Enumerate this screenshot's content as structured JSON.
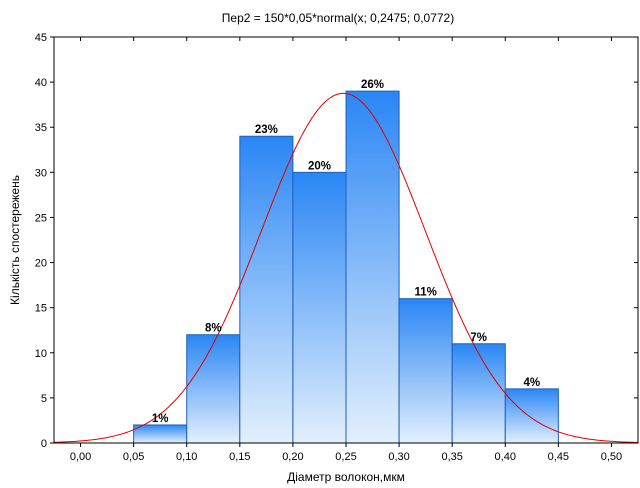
{
  "chart_data": {
    "type": "bar",
    "title": "Пер2 = 150*0,05*normal(x; 0,2475; 0,0772)",
    "xlabel": "Діаметр волокон,мкм",
    "ylabel": "Кількість спостережень",
    "xlim": [
      -0.025,
      0.525
    ],
    "ylim": [
      0,
      45
    ],
    "x_ticks": [
      "0,00",
      "0,05",
      "0,10",
      "0,15",
      "0,20",
      "0,25",
      "0,30",
      "0,35",
      "0,40",
      "0,45",
      "0,50"
    ],
    "y_ticks": [
      "0",
      "5",
      "10",
      "15",
      "20",
      "25",
      "30",
      "35",
      "40",
      "45"
    ],
    "bins": [
      {
        "from": 0.05,
        "to": 0.1,
        "value": 2,
        "label": "1%"
      },
      {
        "from": 0.1,
        "to": 0.15,
        "value": 12,
        "label": "8%"
      },
      {
        "from": 0.15,
        "to": 0.2,
        "value": 34,
        "label": "23%"
      },
      {
        "from": 0.2,
        "to": 0.25,
        "value": 30,
        "label": "20%"
      },
      {
        "from": 0.25,
        "to": 0.3,
        "value": 39,
        "label": "26%"
      },
      {
        "from": 0.3,
        "to": 0.35,
        "value": 16,
        "label": "11%"
      },
      {
        "from": 0.35,
        "to": 0.4,
        "value": 11,
        "label": "7%"
      },
      {
        "from": 0.4,
        "to": 0.45,
        "value": 6,
        "label": "4%"
      }
    ],
    "fit_curve": {
      "type": "normal",
      "n": 150,
      "bin_width": 0.05,
      "mean": 0.2475,
      "sd": 0.0772
    },
    "colors": {
      "bar_top": "#2a86f5",
      "bar_bottom": "#e3f0fd",
      "bar_border": "#1f5fb8",
      "curve": "#e00000"
    },
    "grid": false
  }
}
